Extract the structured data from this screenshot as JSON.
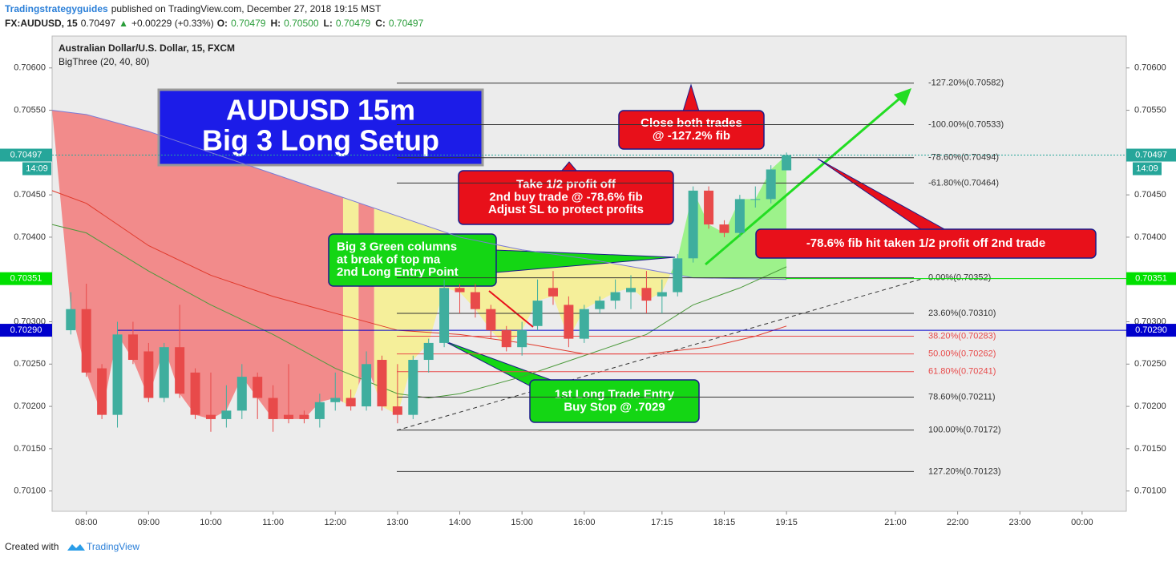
{
  "header": {
    "author": "Tradingstrategyguides",
    "published": "published on TradingView.com, December 27, 2018 19:15 MST",
    "symbol": "FX:AUDUSD, 15",
    "last": "0.70497",
    "arrow": "▲",
    "change": "+0.00229 (+0.33%)",
    "ohlc": [
      "O:",
      "0.70479",
      "H:",
      "0.70500",
      "L:",
      "0.70479",
      "C:",
      "0.70497"
    ]
  },
  "chart_data": {
    "type": "candlestick",
    "title": "Australian Dollar/U.S. Dollar, 15, FXCM",
    "subtitle": "BigThree (20, 40, 80)",
    "up_color": "#3fae9e",
    "down_color": "#e84a4a",
    "x": [
      7.75,
      8,
      8.25,
      8.5,
      8.75,
      9,
      9.25,
      9.5,
      9.75,
      10,
      10.25,
      10.5,
      10.75,
      11,
      11.25,
      11.5,
      11.75,
      12,
      12.25,
      12.5,
      12.75,
      13,
      13.25,
      13.5,
      13.75,
      14,
      14.25,
      14.5,
      14.75,
      15,
      15.25,
      15.5,
      15.75,
      16,
      16.25,
      16.5,
      16.75,
      17,
      17.25,
      17.5,
      17.75,
      18,
      18.25,
      18.5,
      18.75,
      19,
      19.25
    ],
    "open": [
      0.7029,
      0.70315,
      0.70245,
      0.7019,
      0.70285,
      0.70265,
      0.7021,
      0.7027,
      0.7024,
      0.7019,
      0.70185,
      0.70195,
      0.70235,
      0.7021,
      0.7019,
      0.7019,
      0.70185,
      0.70205,
      0.7021,
      0.702,
      0.70255,
      0.702,
      0.7019,
      0.70255,
      0.70275,
      0.7034,
      0.70335,
      0.70315,
      0.7029,
      0.7027,
      0.70295,
      0.7034,
      0.7032,
      0.7028,
      0.70315,
      0.70325,
      0.70335,
      0.7034,
      0.7033,
      0.70335,
      0.70375,
      0.70455,
      0.70415,
      0.70405,
      0.70445,
      0.70445,
      0.70479
    ],
    "high": [
      0.70335,
      0.70345,
      0.7025,
      0.703,
      0.703,
      0.70275,
      0.70275,
      0.7032,
      0.70245,
      0.7024,
      0.70225,
      0.7025,
      0.7024,
      0.70225,
      0.7025,
      0.70195,
      0.70215,
      0.7024,
      0.7022,
      0.70265,
      0.7026,
      0.7025,
      0.7026,
      0.7028,
      0.7035,
      0.70345,
      0.70345,
      0.7032,
      0.70295,
      0.703,
      0.7035,
      0.7036,
      0.7033,
      0.7032,
      0.7033,
      0.7035,
      0.70355,
      0.7036,
      0.7035,
      0.7038,
      0.7046,
      0.7046,
      0.7042,
      0.7045,
      0.7046,
      0.70485,
      0.705
    ],
    "low": [
      0.70285,
      0.70235,
      0.70185,
      0.70175,
      0.7025,
      0.70205,
      0.70205,
      0.7021,
      0.70185,
      0.7017,
      0.70175,
      0.70185,
      0.70185,
      0.7017,
      0.7018,
      0.7018,
      0.70175,
      0.70195,
      0.70195,
      0.70195,
      0.70195,
      0.7018,
      0.70185,
      0.7024,
      0.7027,
      0.7031,
      0.70305,
      0.7028,
      0.70265,
      0.7026,
      0.7029,
      0.7032,
      0.7027,
      0.70275,
      0.7031,
      0.70315,
      0.70315,
      0.7031,
      0.7031,
      0.7033,
      0.7037,
      0.7041,
      0.704,
      0.704,
      0.70435,
      0.7044,
      0.70479
    ],
    "close": [
      0.70315,
      0.7024,
      0.7019,
      0.70285,
      0.70255,
      0.7021,
      0.7027,
      0.70215,
      0.7019,
      0.70185,
      0.70195,
      0.70235,
      0.7021,
      0.70185,
      0.70185,
      0.70185,
      0.70205,
      0.7021,
      0.702,
      0.7025,
      0.702,
      0.7019,
      0.70255,
      0.70275,
      0.7034,
      0.70335,
      0.70315,
      0.7029,
      0.7027,
      0.7029,
      0.70325,
      0.7033,
      0.7028,
      0.70315,
      0.70325,
      0.70335,
      0.7034,
      0.70325,
      0.70335,
      0.70375,
      0.70455,
      0.70415,
      0.70405,
      0.70445,
      0.70445,
      0.7048,
      0.70497
    ],
    "ma_lines": [
      {
        "color": "#7b7bd6",
        "x": [
          7.45,
          8,
          9,
          10,
          11,
          12,
          13,
          14,
          15,
          16,
          17,
          17.75,
          19.25
        ],
        "values": [
          0.7055,
          0.70545,
          0.70525,
          0.705,
          0.70475,
          0.7045,
          0.70425,
          0.704,
          0.70385,
          0.70375,
          0.70362,
          0.70352,
          0.7035
        ]
      },
      {
        "color": "#e0392b",
        "x": [
          7.45,
          8,
          9,
          10,
          11,
          12,
          13,
          14,
          15,
          16,
          17,
          18,
          18.75,
          19.25
        ],
        "values": [
          0.70455,
          0.7044,
          0.7039,
          0.70355,
          0.7033,
          0.7031,
          0.7029,
          0.70285,
          0.70275,
          0.70262,
          0.70262,
          0.7027,
          0.70283,
          0.70295
        ]
      },
      {
        "color": "#4c9a3c",
        "x": [
          7.45,
          8,
          9,
          10,
          11,
          12,
          13,
          13.5,
          14,
          15,
          16,
          17,
          17.75,
          18.5,
          19.25
        ],
        "values": [
          0.70415,
          0.70405,
          0.7036,
          0.7032,
          0.70285,
          0.70245,
          0.70215,
          0.7021,
          0.70215,
          0.70235,
          0.7026,
          0.70285,
          0.7032,
          0.7034,
          0.70365
        ]
      }
    ],
    "zones": [
      {
        "start": 7.45,
        "end": 12.125,
        "color": "#f28b8b"
      },
      {
        "start": 12.125,
        "end": 12.375,
        "color": "#f5ef9a"
      },
      {
        "start": 12.375,
        "end": 12.625,
        "color": "#f28b8b"
      },
      {
        "start": 12.625,
        "end": 17.375,
        "color": "#f5ef9a"
      },
      {
        "start": 17.375,
        "end": 19.25,
        "color": "#9df28b"
      }
    ],
    "xlim": [
      7.45,
      24.71
    ],
    "ylim": [
      0.70076,
      0.70614
    ],
    "xticks": [
      {
        "value": 8,
        "label": "08:00"
      },
      {
        "value": 9,
        "label": "09:00"
      },
      {
        "value": 10,
        "label": "10:00"
      },
      {
        "value": 11,
        "label": "11:00"
      },
      {
        "value": 12,
        "label": "12:00"
      },
      {
        "value": 13,
        "label": "13:00"
      },
      {
        "value": 14,
        "label": "14:00"
      },
      {
        "value": 15,
        "label": "15:00"
      },
      {
        "value": 16,
        "label": "16:00"
      },
      {
        "value": 17.25,
        "label": "17:15"
      },
      {
        "value": 18.25,
        "label": "18:15"
      },
      {
        "value": 19.25,
        "label": "19:15"
      },
      {
        "value": 21,
        "label": "21:00"
      },
      {
        "value": 22,
        "label": "22:00"
      },
      {
        "value": 23,
        "label": "23:00"
      },
      {
        "value": 24,
        "label": "00:00"
      }
    ],
    "yticks": [
      {
        "value": 0.706,
        "label": "0.70600"
      },
      {
        "value": 0.7055,
        "label": "0.70550"
      },
      {
        "value": 0.7045,
        "label": "0.70450"
      },
      {
        "value": 0.704,
        "label": "0.70400"
      },
      {
        "value": 0.703,
        "label": "0.70300"
      },
      {
        "value": 0.7025,
        "label": "0.70250"
      },
      {
        "value": 0.702,
        "label": "0.70200"
      },
      {
        "value": 0.7015,
        "label": "0.70150"
      },
      {
        "value": 0.701,
        "label": "0.70100"
      }
    ],
    "fib_levels": [
      {
        "value": 0.70582,
        "label": "-127.20%(0.70582)",
        "color": "#333333"
      },
      {
        "value": 0.70533,
        "label": "-100.00%(0.70533)",
        "color": "#333333"
      },
      {
        "value": 0.70494,
        "label": "-78.60%(0.70494)",
        "color": "#333333"
      },
      {
        "value": 0.70464,
        "label": "-61.80%(0.70464)",
        "color": "#333333"
      },
      {
        "value": 0.70352,
        "label": "0.00%(0.70352)",
        "color": "#333333"
      },
      {
        "value": 0.7031,
        "label": "23.60%(0.70310)",
        "color": "#333333"
      },
      {
        "value": 0.70283,
        "label": "38.20%(0.70283)",
        "color": "#e84a4a"
      },
      {
        "value": 0.70262,
        "label": "50.00%(0.70262)",
        "color": "#e84a4a"
      },
      {
        "value": 0.70241,
        "label": "61.80%(0.70241)",
        "color": "#e84a4a"
      },
      {
        "value": 0.70211,
        "label": "78.60%(0.70211)",
        "color": "#333333"
      },
      {
        "value": 0.70172,
        "label": "100.00%(0.70172)",
        "color": "#333333"
      },
      {
        "value": 0.70123,
        "label": "127.20%(0.70123)",
        "color": "#333333"
      }
    ],
    "price_lines": [
      {
        "value": 0.70497,
        "label": "0.70497",
        "color": "#26a69a",
        "countdown": "14:09"
      },
      {
        "value": 0.70351,
        "label": "0.70351",
        "color": "#00e000"
      },
      {
        "value": 0.7029,
        "label": "0.70290",
        "color": "#0000cc"
      }
    ],
    "annotations": [
      {
        "lines": [
          "AUDUSD 15m",
          "Big 3 Long Setup"
        ],
        "color": "#1c1ce8"
      },
      {
        "lines": [
          "Close both trades",
          "@ -127.2% fib"
        ],
        "color": "#e8101a"
      },
      {
        "lines": [
          "Take 1/2 profit off",
          "2nd buy trade @ -78.6% fib",
          "Adjust SL to protect profits"
        ],
        "color": "#e8101a"
      },
      {
        "lines": [
          "Big 3 Green columns",
          "at break of top ma",
          "2nd Long Entry Point"
        ],
        "color": "#14d614"
      },
      {
        "lines": [
          "1st Long Trade Entry",
          "Buy Stop @ .7029"
        ],
        "color": "#14d614"
      },
      {
        "lines": [
          "-78.6% fib hit taken 1/2 profit off 2nd trade"
        ],
        "color": "#e8101a"
      }
    ]
  },
  "footer": {
    "created": "Created with",
    "brand": "TradingView"
  }
}
